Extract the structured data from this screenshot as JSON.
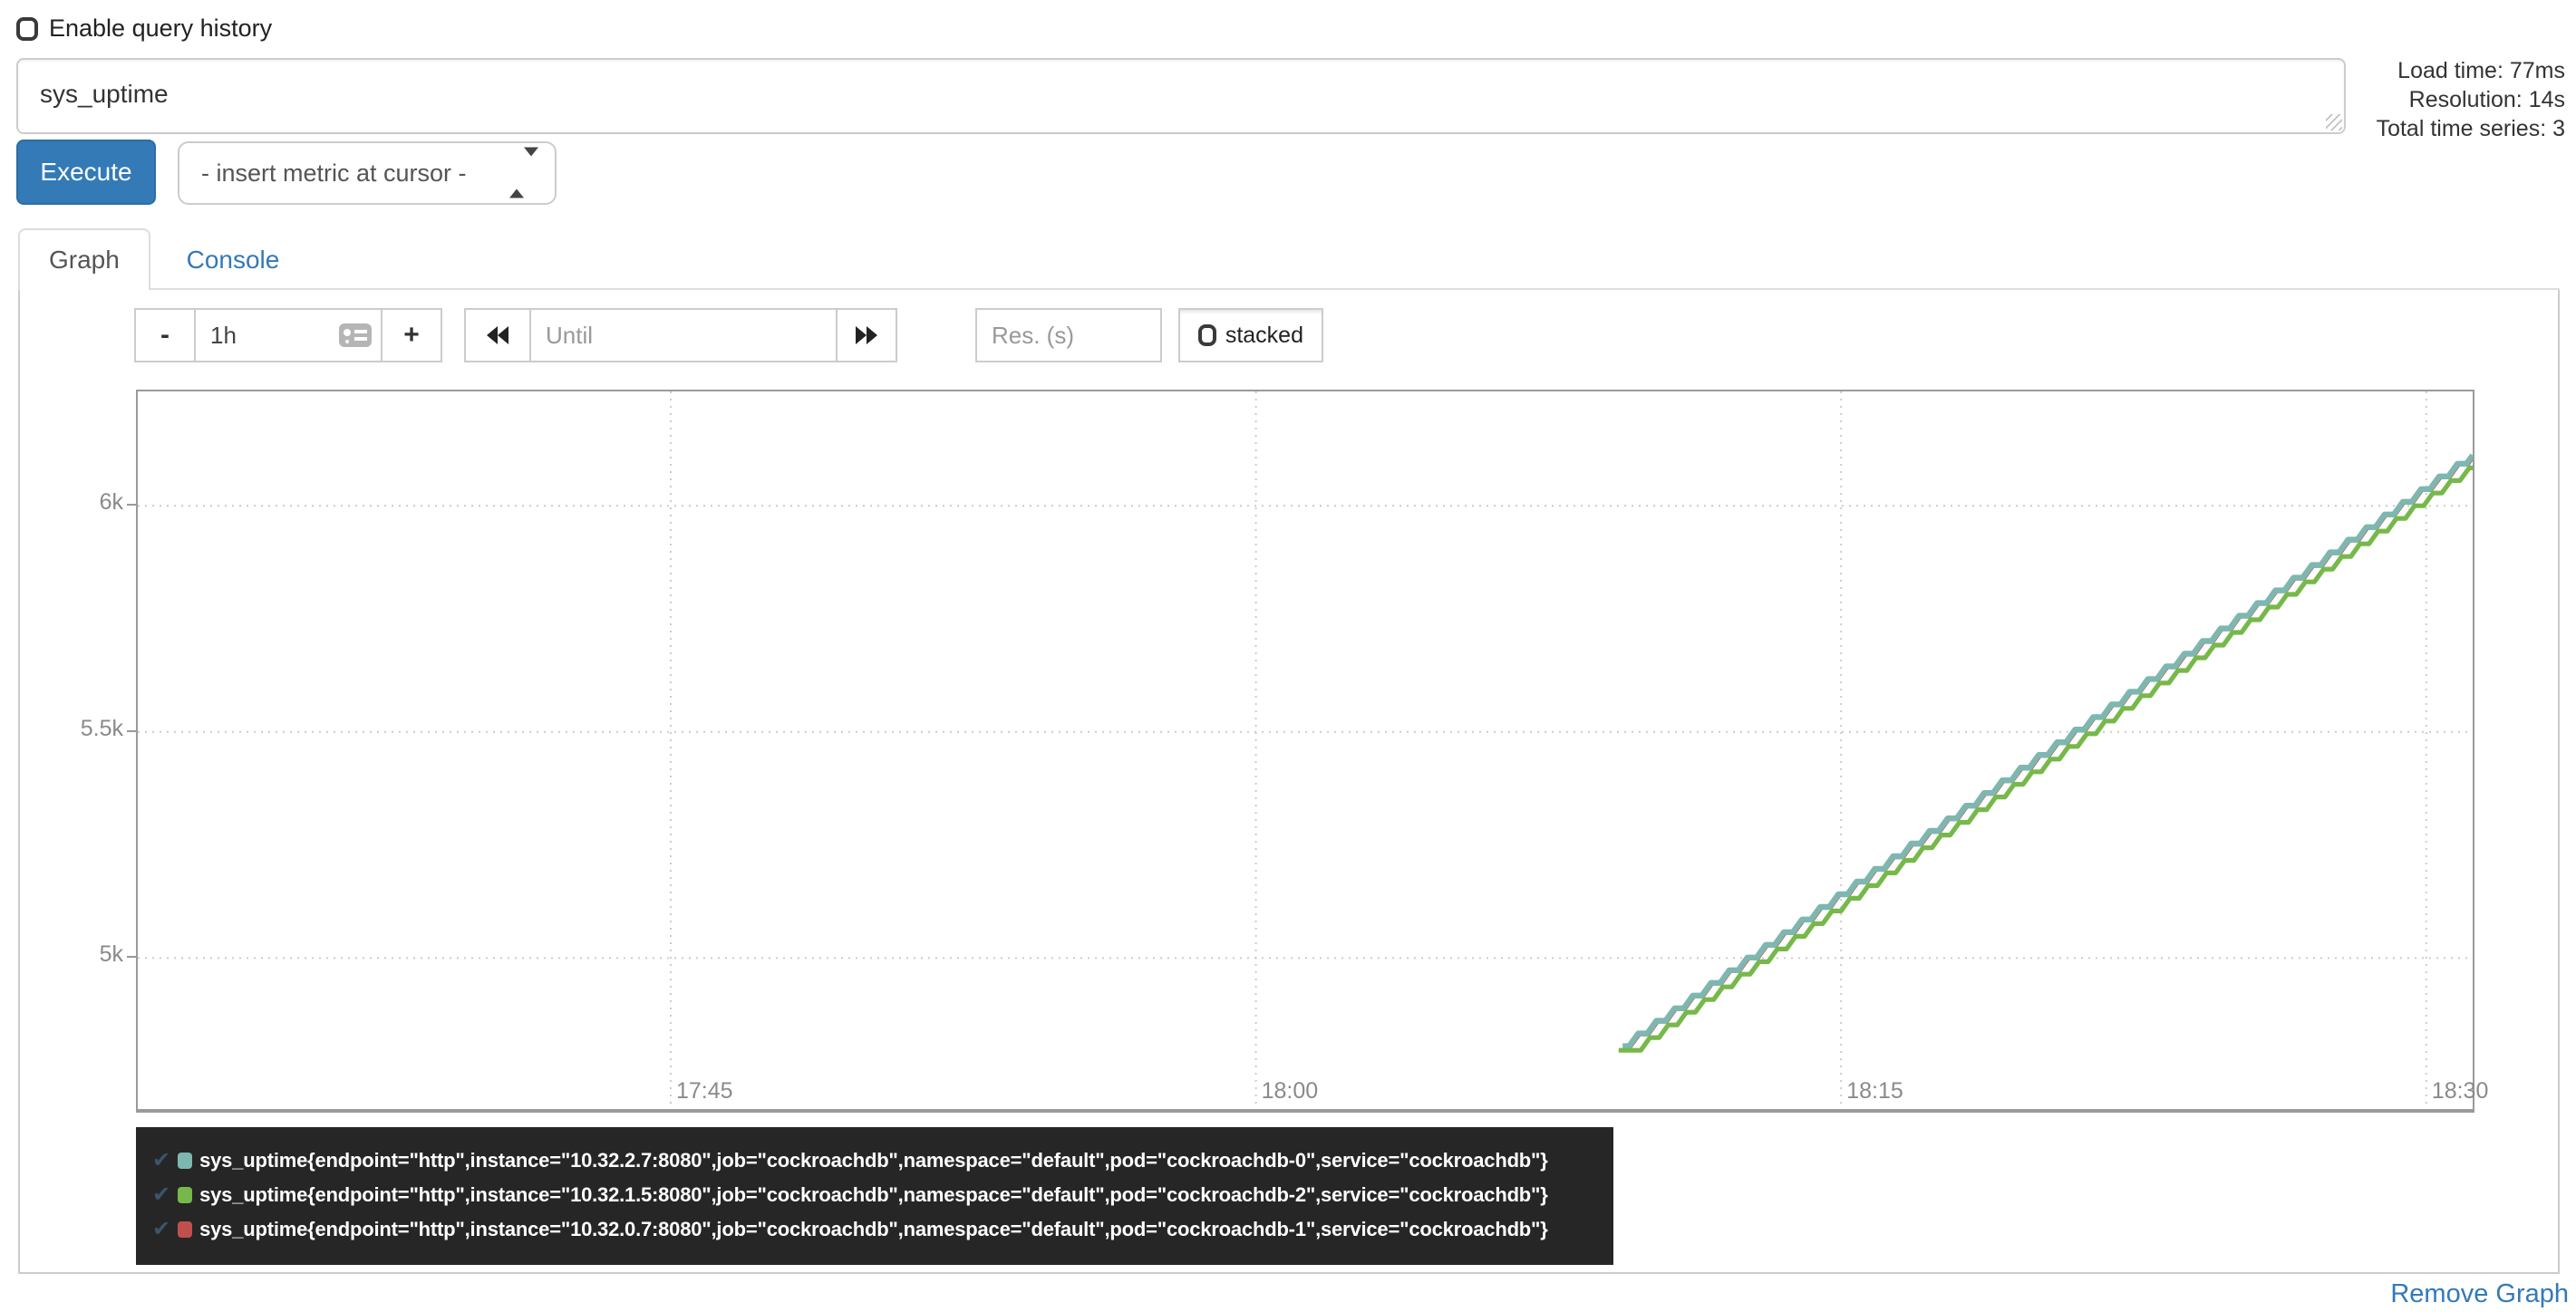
{
  "header": {
    "enable_query_history_label": "Enable query history",
    "query_value": "sys_uptime",
    "stats": {
      "load_time": "Load time: 77ms",
      "resolution": "Resolution: 14s",
      "total_series": "Total time series: 3"
    },
    "execute_label": "Execute",
    "metric_select_value": "- insert metric at cursor -"
  },
  "tabs": {
    "graph": "Graph",
    "console": "Console"
  },
  "toolbar": {
    "minus_label": "-",
    "range_value": "1h",
    "plus_label": "+",
    "until_placeholder": "Until",
    "res_placeholder": "Res. (s)",
    "stacked_label": "stacked"
  },
  "chart_data": {
    "type": "line",
    "title": "",
    "xlabel": "",
    "ylabel": "",
    "grid": true,
    "legend_position": "below",
    "x_ticks": [
      {
        "t_min": 1065,
        "label": "17:45"
      },
      {
        "t_min": 1080,
        "label": "18:00"
      },
      {
        "t_min": 1095,
        "label": "18:15"
      },
      {
        "t_min": 1110,
        "label": "18:30"
      }
    ],
    "y_ticks": [
      {
        "v": 5000,
        "label": "5k"
      },
      {
        "v": 5500,
        "label": "5.5k"
      },
      {
        "v": 6000,
        "label": "6k"
      }
    ],
    "x_domain_min": [
      1051.34,
      1111.19
    ],
    "y_domain": [
      4666,
      6253
    ],
    "series": [
      {
        "name": "sys_uptime{pod=\"cockroachdb-0\"}",
        "color": "#7DB7B0",
        "line_width": 3.2,
        "draw_order": 1,
        "start_min": 1089.4,
        "start_value": 4805,
        "end_min": 1111.19,
        "lead_flat_s": 10,
        "step_s": 28,
        "slope_per_s": 1
      },
      {
        "name": "sys_uptime{pod=\"cockroachdb-2\"}",
        "color": "#77B84A",
        "line_width": 2.6,
        "draw_order": 2,
        "start_min": 1089.3,
        "start_value": 4796,
        "end_min": 1111.19,
        "lead_flat_s": 34,
        "step_s": 28,
        "slope_per_s": 1
      },
      {
        "name": "sys_uptime{pod=\"cockroachdb-1\"}",
        "color": "#C0504D",
        "line_width": 1.6,
        "draw_order": 0,
        "start_min": 1089.42,
        "start_value": 4802,
        "end_min": 1111.19,
        "lead_flat_s": 11,
        "step_s": 28,
        "slope_per_s": 1
      }
    ]
  },
  "legend": {
    "check_glyph": "✔",
    "items": [
      {
        "color": "#7DB7B0",
        "label": "sys_uptime{endpoint=\"http\",instance=\"10.32.2.7:8080\",job=\"cockroachdb\",namespace=\"default\",pod=\"cockroachdb-0\",service=\"cockroachdb\"}"
      },
      {
        "color": "#77B84A",
        "label": "sys_uptime{endpoint=\"http\",instance=\"10.32.1.5:8080\",job=\"cockroachdb\",namespace=\"default\",pod=\"cockroachdb-2\",service=\"cockroachdb\"}"
      },
      {
        "color": "#C0504D",
        "label": "sys_uptime{endpoint=\"http\",instance=\"10.32.0.7:8080\",job=\"cockroachdb\",namespace=\"default\",pod=\"cockroachdb-1\",service=\"cockroachdb\"}"
      }
    ]
  },
  "footer": {
    "remove_graph_label": "Remove Graph"
  },
  "colors": {
    "accent_blue": "#337ab7",
    "legend_bg": "#262626",
    "grid_gray": "#cccccc",
    "axis_gray": "#9a9a9a"
  }
}
